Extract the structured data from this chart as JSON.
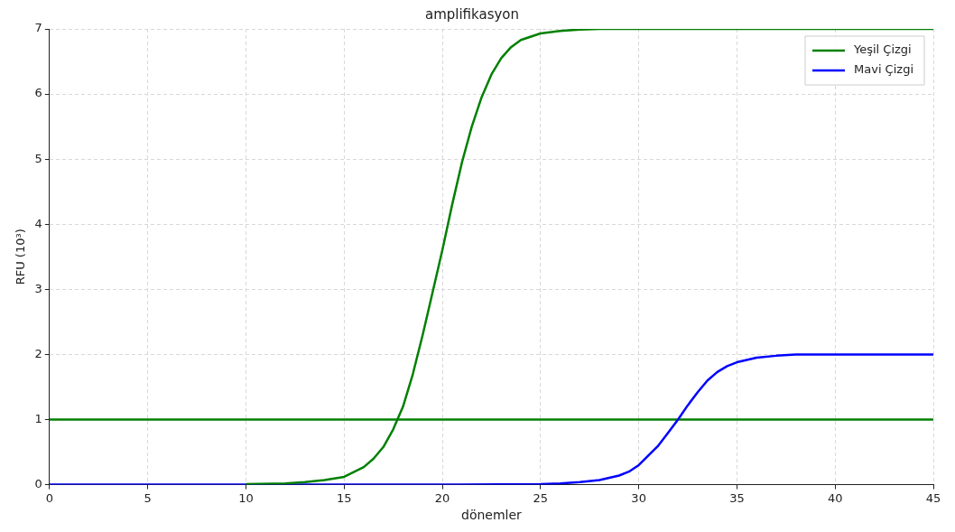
{
  "chart_data": {
    "type": "line",
    "title": "amplifikasyon",
    "xlabel": "dönemler",
    "ylabel": "RFU (10³)",
    "xlim": [
      0,
      45
    ],
    "xticks": [
      0,
      5,
      10,
      15,
      20,
      25,
      30,
      35,
      40,
      45
    ],
    "ylim": [
      0,
      7
    ],
    "yticks": [
      0,
      1,
      2,
      3,
      4,
      5,
      6,
      7
    ],
    "grid": true,
    "legend": "top right",
    "marker": "none",
    "line_style": "solid",
    "ref_lines": [
      {
        "axis": "y",
        "value": 1,
        "color": "#008000"
      }
    ],
    "series": [
      {
        "name": "Yeşil Çizgi",
        "color": "#008000",
        "x": [
          10,
          12,
          13,
          14,
          15,
          16,
          16.5,
          17,
          17.5,
          18,
          18.5,
          19,
          19.5,
          20,
          20.5,
          21,
          21.5,
          22,
          22.5,
          23,
          23.5,
          24,
          25,
          26,
          27,
          28,
          30,
          35,
          40,
          45
        ],
        "values": [
          0.01,
          0.02,
          0.04,
          0.07,
          0.12,
          0.27,
          0.4,
          0.58,
          0.85,
          1.2,
          1.7,
          2.3,
          2.95,
          3.6,
          4.3,
          4.95,
          5.5,
          5.95,
          6.3,
          6.55,
          6.72,
          6.83,
          6.93,
          6.97,
          6.99,
          7,
          7,
          7,
          7,
          7
        ]
      },
      {
        "name": "Mavi Çizgi",
        "color": "#0000ff",
        "x": [
          0,
          10,
          20,
          25,
          26,
          27,
          28,
          29,
          29.5,
          30,
          30.5,
          31,
          31.5,
          32,
          32.5,
          33,
          33.5,
          34,
          34.5,
          35,
          36,
          37,
          38,
          40,
          45
        ],
        "values": [
          0,
          0,
          0,
          0.01,
          0.02,
          0.04,
          0.07,
          0.14,
          0.2,
          0.3,
          0.45,
          0.6,
          0.8,
          1,
          1.22,
          1.42,
          1.6,
          1.73,
          1.82,
          1.88,
          1.95,
          1.98,
          2,
          2,
          2
        ]
      }
    ]
  }
}
